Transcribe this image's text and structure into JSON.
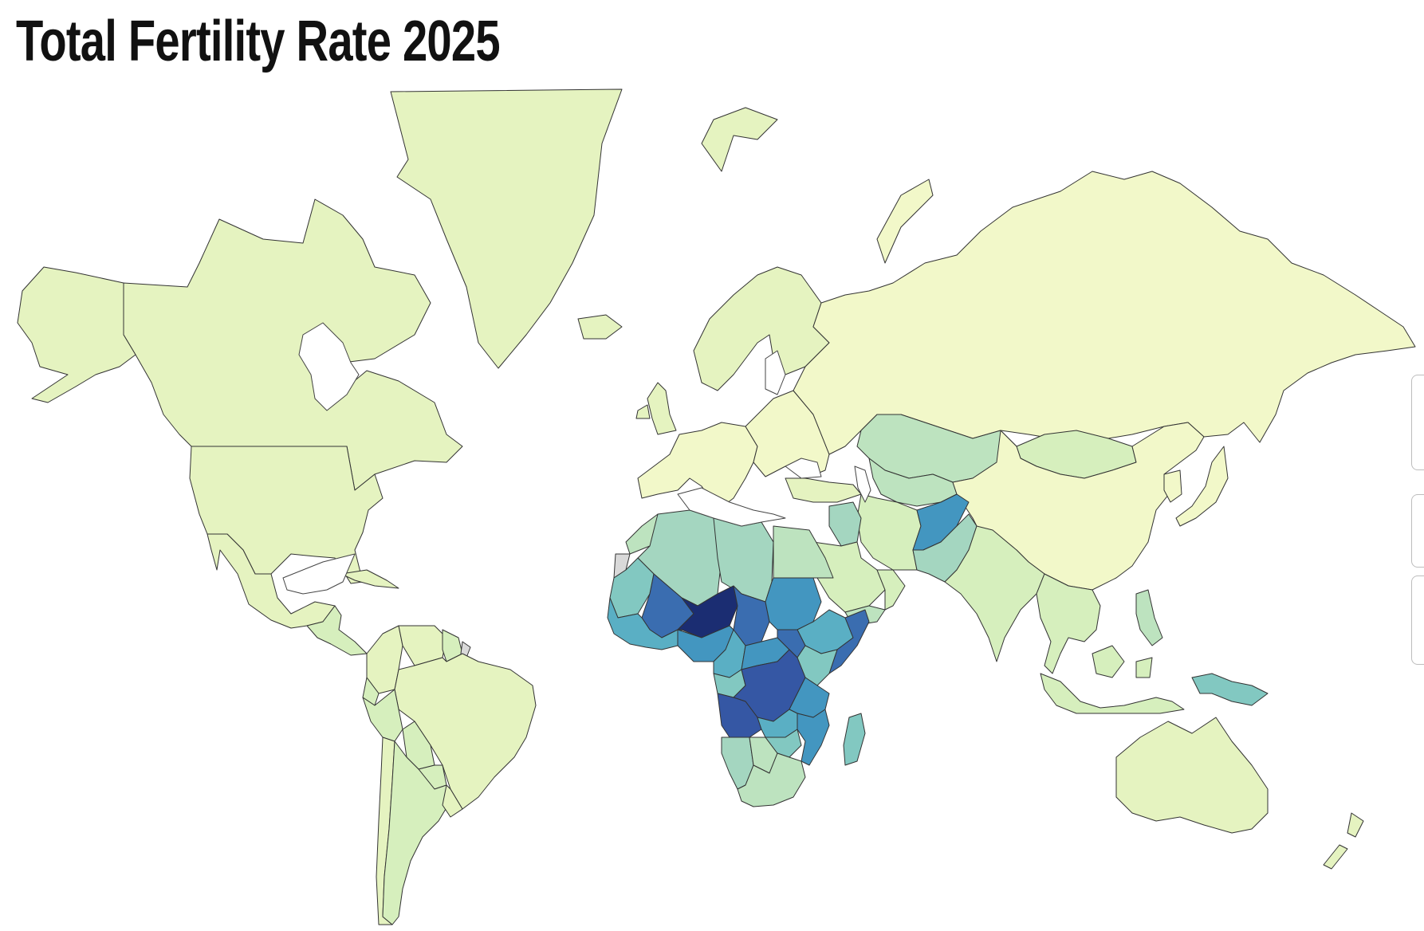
{
  "title": "Total Fertility Rate 2025",
  "colors": {
    "c0": "#f2f8c9",
    "c1": "#e5f3c0",
    "c2": "#d6efbd",
    "c3": "#bde3bf",
    "c4": "#a4d6c0",
    "c5": "#82c8c1",
    "c6": "#5aafc4",
    "c7": "#4396c0",
    "c8": "#3a6db0",
    "c9": "#3557a4",
    "c10": "#1b2d72",
    "nodata": "#d9d9d9",
    "border": "#333333"
  },
  "regions": [
    {
      "name": "Greenland",
      "color_class": "c1"
    },
    {
      "name": "Canada",
      "color_class": "c1"
    },
    {
      "name": "Alaska",
      "color_class": "c1"
    },
    {
      "name": "United States",
      "color_class": "c1"
    },
    {
      "name": "Mexico",
      "color_class": "c1"
    },
    {
      "name": "Central America",
      "color_class": "c2"
    },
    {
      "name": "Cuba",
      "color_class": "c1"
    },
    {
      "name": "Colombia",
      "color_class": "c1"
    },
    {
      "name": "Venezuela",
      "color_class": "c1"
    },
    {
      "name": "Guyana",
      "color_class": "c2"
    },
    {
      "name": "French Guiana",
      "color_class": "nodata"
    },
    {
      "name": "Brazil",
      "color_class": "c1"
    },
    {
      "name": "Ecuador",
      "color_class": "c2"
    },
    {
      "name": "Peru",
      "color_class": "c2"
    },
    {
      "name": "Bolivia",
      "color_class": "c2"
    },
    {
      "name": "Paraguay",
      "color_class": "c2"
    },
    {
      "name": "Chile",
      "color_class": "c1"
    },
    {
      "name": "Argentina",
      "color_class": "c2"
    },
    {
      "name": "Uruguay",
      "color_class": "c1"
    },
    {
      "name": "Iceland",
      "color_class": "c1"
    },
    {
      "name": "Svalbard",
      "color_class": "c1"
    },
    {
      "name": "Scandinavia",
      "color_class": "c1"
    },
    {
      "name": "British Isles",
      "color_class": "c1"
    },
    {
      "name": "Western Europe",
      "color_class": "c0"
    },
    {
      "name": "Eastern Europe",
      "color_class": "c0"
    },
    {
      "name": "Russia",
      "color_class": "c0"
    },
    {
      "name": "Novaya Zemlya",
      "color_class": "c0"
    },
    {
      "name": "Kazakhstan",
      "color_class": "c3"
    },
    {
      "name": "Central Asia",
      "color_class": "c3"
    },
    {
      "name": "Mongolia",
      "color_class": "c2"
    },
    {
      "name": "China",
      "color_class": "c0"
    },
    {
      "name": "Japan",
      "color_class": "c0"
    },
    {
      "name": "Korea",
      "color_class": "c0"
    },
    {
      "name": "Turkey",
      "color_class": "c1"
    },
    {
      "name": "Iran",
      "color_class": "c2"
    },
    {
      "name": "Iraq",
      "color_class": "c4"
    },
    {
      "name": "Saudi Arabia",
      "color_class": "c2"
    },
    {
      "name": "Yemen",
      "color_class": "c3"
    },
    {
      "name": "Oman",
      "color_class": "c2"
    },
    {
      "name": "Afghanistan",
      "color_class": "c7"
    },
    {
      "name": "Pakistan",
      "color_class": "c4"
    },
    {
      "name": "India",
      "color_class": "c2"
    },
    {
      "name": "Southeast Asia",
      "color_class": "c2"
    },
    {
      "name": "Philippines",
      "color_class": "c3"
    },
    {
      "name": "Indonesia",
      "color_class": "c2"
    },
    {
      "name": "Papua New Guinea",
      "color_class": "c5"
    },
    {
      "name": "Australia",
      "color_class": "c1"
    },
    {
      "name": "New Zealand",
      "color_class": "c1"
    },
    {
      "name": "Morocco",
      "color_class": "c3"
    },
    {
      "name": "Western Sahara",
      "color_class": "nodata"
    },
    {
      "name": "Algeria",
      "color_class": "c4"
    },
    {
      "name": "Libya",
      "color_class": "c4"
    },
    {
      "name": "Egypt",
      "color_class": "c3"
    },
    {
      "name": "Mauritania",
      "color_class": "c5"
    },
    {
      "name": "Mali",
      "color_class": "c8"
    },
    {
      "name": "Niger",
      "color_class": "c10"
    },
    {
      "name": "Chad",
      "color_class": "c8"
    },
    {
      "name": "Sudan",
      "color_class": "c7"
    },
    {
      "name": "Ethiopia",
      "color_class": "c6"
    },
    {
      "name": "Somalia",
      "color_class": "c8"
    },
    {
      "name": "West Africa coast",
      "color_class": "c6"
    },
    {
      "name": "Nigeria",
      "color_class": "c7"
    },
    {
      "name": "Cameroon",
      "color_class": "c6"
    },
    {
      "name": "Central African Republic",
      "color_class": "c7"
    },
    {
      "name": "South Sudan",
      "color_class": "c8"
    },
    {
      "name": "Kenya",
      "color_class": "c5"
    },
    {
      "name": "Gabon and Congo",
      "color_class": "c5"
    },
    {
      "name": "DR Congo",
      "color_class": "c9"
    },
    {
      "name": "Angola",
      "color_class": "c9"
    },
    {
      "name": "Tanzania",
      "color_class": "c7"
    },
    {
      "name": "Zambia",
      "color_class": "c6"
    },
    {
      "name": "Mozambique",
      "color_class": "c7"
    },
    {
      "name": "Madagascar",
      "color_class": "c5"
    },
    {
      "name": "Namibia",
      "color_class": "c4"
    },
    {
      "name": "Botswana",
      "color_class": "c3"
    },
    {
      "name": "Zimbabwe",
      "color_class": "c5"
    },
    {
      "name": "South Africa",
      "color_class": "c3"
    }
  ]
}
